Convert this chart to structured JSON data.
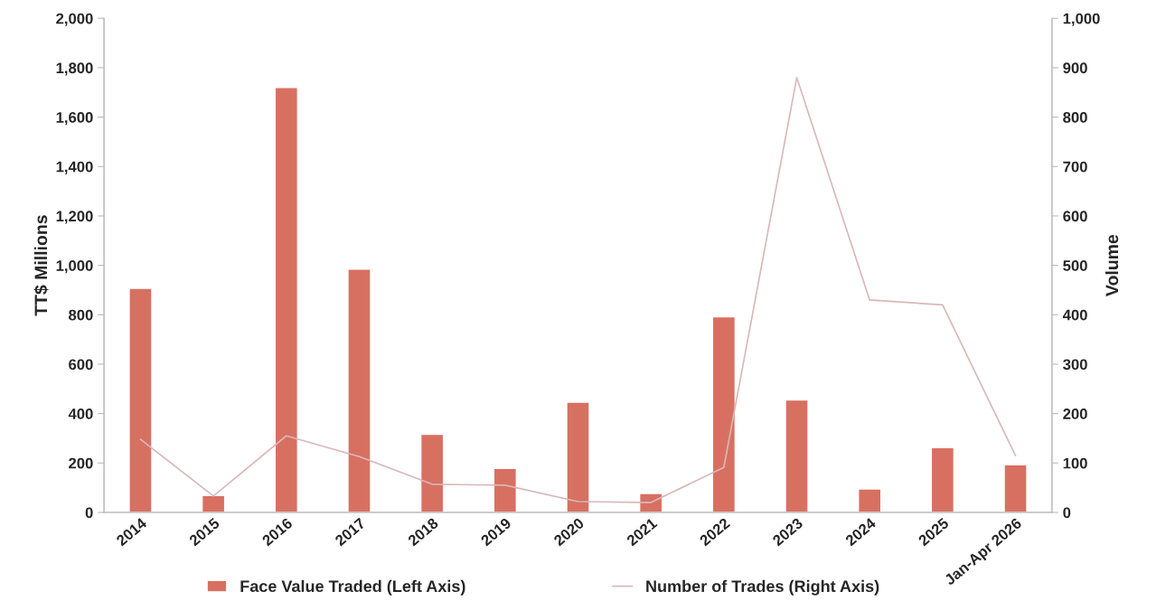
{
  "chart_data": {
    "type": "bar",
    "categories": [
      "2014",
      "2015",
      "2016",
      "2017",
      "2018",
      "2019",
      "2020",
      "2021",
      "2022",
      "2023",
      "2024",
      "2025",
      "Jan-Apr 2026"
    ],
    "ylabel": "TT$ Millions",
    "y2label": "Volume",
    "series": [
      {
        "name": "Face Value Traded (Left Axis)",
        "color": "#d87062",
        "values": [
          907,
          68,
          1720,
          985,
          316,
          178,
          446,
          77,
          792,
          455,
          95,
          262,
          193
        ]
      },
      {
        "name": "Number of Trades (Right Axis)",
        "type": "line",
        "axis": "y2",
        "color": "#d8b8b8",
        "values": [
          148,
          33,
          155,
          113,
          57,
          55,
          22,
          20,
          91,
          880,
          430,
          420,
          115
        ]
      }
    ],
    "ylim": [
      0,
      2000
    ],
    "yticks": [
      0,
      {
        "value": 200,
        "label": "200"
      },
      {
        "value": 400,
        "label": "400"
      },
      {
        "value": 600,
        "label": "600"
      },
      {
        "value": 800,
        "label": "800"
      },
      {
        "value": 1000,
        "label": "1,000"
      },
      {
        "value": 1200,
        "label": "1,200"
      },
      {
        "value": 1400,
        "label": "1,400"
      },
      {
        "value": 1600,
        "label": "1,600"
      },
      {
        "value": 1800,
        "label": "1,800"
      },
      {
        "value": 2000,
        "label": "2,000"
      }
    ],
    "y2lim": [
      0,
      1000
    ],
    "y2ticks": [
      0,
      100,
      200,
      300,
      400,
      500,
      600,
      700,
      800,
      900,
      {
        "value": 1000,
        "label": "1,000"
      }
    ],
    "grid": false,
    "legend": "bottom",
    "marker": "none",
    "line_style": "solid"
  }
}
